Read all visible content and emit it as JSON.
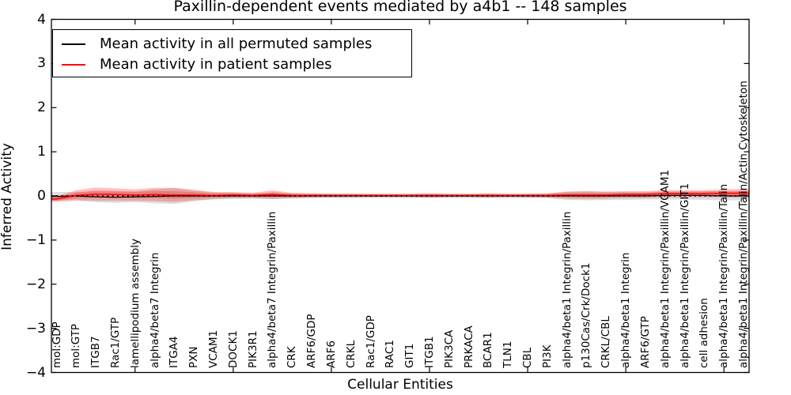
{
  "figure": {
    "title": "Paxillin-dependent events mediated by a4b1 -- 148 samples"
  },
  "legend": {
    "items": [
      {
        "label": "Mean activity in all permuted samples",
        "color": "#000000"
      },
      {
        "label": "Mean activity in patient samples",
        "color": "#ff0000"
      }
    ]
  },
  "chart_data": {
    "type": "line",
    "title": "Paxillin-dependent events mediated by a4b1 -- 148 samples",
    "xlabel": "Cellular Entities",
    "ylabel": "Inferred Activity",
    "ylim": [
      -4,
      4
    ],
    "yticks": [
      4,
      3,
      2,
      1,
      0,
      -1,
      -2,
      -3,
      -4
    ],
    "x_major_tick_every": 5,
    "grid": false,
    "legend_position": "upper left",
    "baseline": {
      "y": 0,
      "style": "dotted",
      "color": "#000000"
    },
    "categories": [
      "mol:GDP",
      "mol:GTP",
      "ITGB7",
      "Rac1/GTP",
      "lamellipodium assembly",
      "alpha4/beta7 Integrin",
      "ITGA4",
      "PXN",
      "VCAM1",
      "DOCK1",
      "PIK3R1",
      "alpha4/beta7 Integrin/Paxillin",
      "CRK",
      "ARF6/GDP",
      "ARF6",
      "CRKL",
      "Rac1/GDP",
      "RAC1",
      "GIT1",
      "ITGB1",
      "PIK3CA",
      "PRKACA",
      "BCAR1",
      "TLN1",
      "CBL",
      "PI3K",
      "alpha4/beta1 Integrin/Paxillin",
      "p130Cas/Crk/Dock1",
      "CRKL/CBL",
      "alpha4/beta1 Integrin",
      "ARF6/GTP",
      "alpha4/beta1 Integrin/Paxillin/VCAM1",
      "alpha4/beta1 Integrin/Paxillin/GIT1",
      "cell adhesion",
      "alpha4/beta1 Integrin/Paxillin/Talin",
      "alpha4/beta1 Integrin/Paxillin/Talin/Actin Cytoskeleton"
    ],
    "series": [
      {
        "name": "Mean activity in all permuted samples",
        "color": "#000000",
        "line_width": 1.2,
        "values": [
          -0.01,
          0.0,
          -0.02,
          -0.03,
          -0.02,
          -0.01,
          0.0,
          0.0,
          0.0,
          0.0,
          0.0,
          0.0,
          0.0,
          0.0,
          0.0,
          0.0,
          0.0,
          0.0,
          0.0,
          0.0,
          0.0,
          0.0,
          0.0,
          0.0,
          0.0,
          0.0,
          0.0,
          0.0,
          0.0,
          0.0,
          0.0,
          0.01,
          0.01,
          0.01,
          0.0,
          0.0
        ],
        "band_half_width": [
          0.1,
          0.09,
          0.12,
          0.13,
          0.12,
          0.16,
          0.18,
          0.12,
          0.08,
          0.07,
          0.06,
          0.07,
          0.06,
          0.05,
          0.05,
          0.05,
          0.04,
          0.04,
          0.04,
          0.05,
          0.04,
          0.04,
          0.05,
          0.04,
          0.05,
          0.05,
          0.09,
          0.1,
          0.09,
          0.09,
          0.08,
          0.09,
          0.09,
          0.1,
          0.1,
          0.1
        ],
        "band_color": "rgba(0,0,0,0.13)",
        "band_inner_scale": 1
      },
      {
        "name": "Mean activity in patient samples",
        "color": "#ff0000",
        "line_width": 1.5,
        "values": [
          -0.07,
          0.01,
          0.04,
          0.03,
          0.02,
          0.03,
          0.02,
          0.02,
          0.01,
          0.02,
          0.01,
          0.03,
          0.01,
          0.01,
          0.01,
          0.01,
          0.01,
          0.01,
          0.01,
          0.01,
          0.01,
          0.01,
          0.01,
          0.01,
          0.01,
          0.01,
          0.02,
          0.02,
          0.02,
          0.03,
          0.03,
          0.05,
          0.05,
          0.05,
          0.06,
          0.06
        ],
        "band_half_width": [
          0.06,
          0.12,
          0.15,
          0.14,
          0.13,
          0.15,
          0.16,
          0.12,
          0.08,
          0.07,
          0.06,
          0.1,
          0.06,
          0.05,
          0.04,
          0.04,
          0.04,
          0.04,
          0.04,
          0.05,
          0.04,
          0.04,
          0.05,
          0.04,
          0.04,
          0.05,
          0.08,
          0.09,
          0.08,
          0.08,
          0.08,
          0.08,
          0.08,
          0.08,
          0.09,
          0.1
        ],
        "band_color": "rgba(255,0,0,0.25)",
        "band_inner_scale": 0.55
      }
    ]
  }
}
